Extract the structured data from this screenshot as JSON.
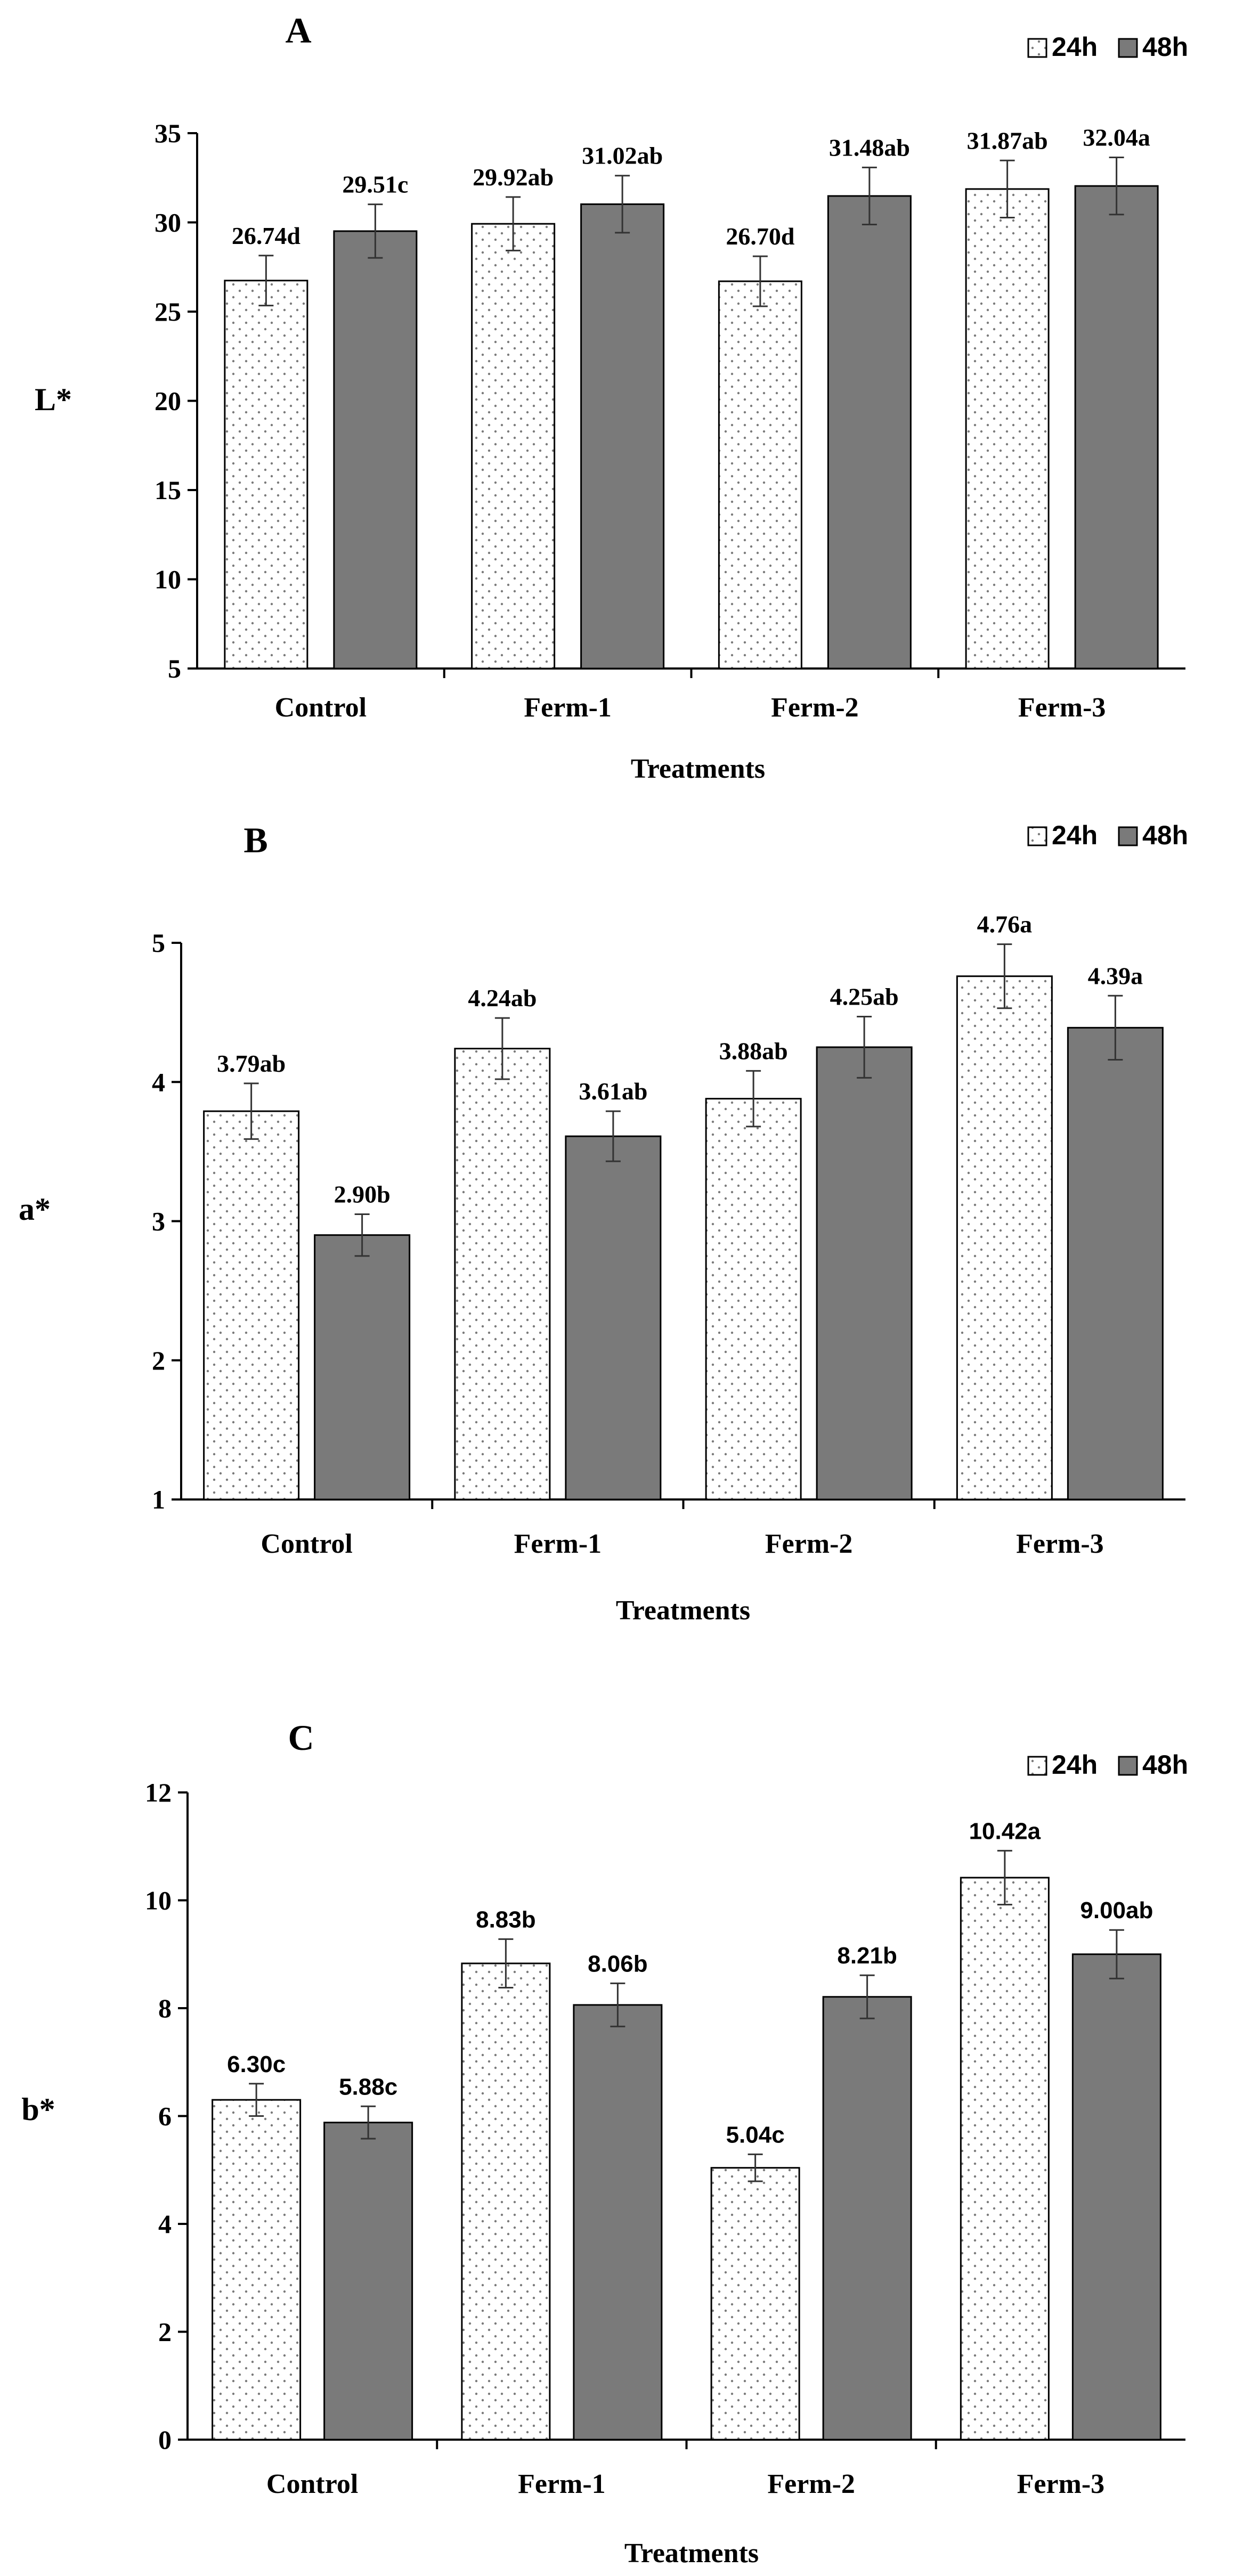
{
  "colors": {
    "bar_24h": "#ffffff",
    "bar_48h": "#7a7a7a",
    "dot": "#7a7a7a",
    "axis": "#000000"
  },
  "chart_data": [
    {
      "type": "bar",
      "panel": "A",
      "title": "A",
      "ylabel": "L*",
      "xlabel": "Treatments",
      "ylim": [
        5,
        35
      ],
      "yticks": [
        5,
        10,
        15,
        20,
        25,
        30,
        35
      ],
      "categories": [
        "Control",
        "Ferm-1",
        "Ferm-2",
        "Ferm-3"
      ],
      "legend": [
        "24h",
        "48h"
      ],
      "legend_position": "top-right",
      "series": [
        {
          "name": "24h",
          "values": [
            26.74,
            29.92,
            26.7,
            31.87
          ],
          "errors": [
            1.4,
            1.5,
            1.4,
            1.6
          ],
          "labels": [
            "26.74d",
            "29.92ab",
            "26.70d",
            "31.87ab"
          ]
        },
        {
          "name": "48h",
          "values": [
            29.51,
            31.02,
            31.48,
            32.04
          ],
          "errors": [
            1.5,
            1.6,
            1.6,
            1.6
          ],
          "labels": [
            "29.51c",
            "31.02ab",
            "31.48ab",
            "32.04a"
          ]
        }
      ]
    },
    {
      "type": "bar",
      "panel": "B",
      "title": "B",
      "ylabel": "a*",
      "xlabel": "Treatments",
      "ylim": [
        1,
        5
      ],
      "yticks": [
        1,
        2,
        3,
        4,
        5
      ],
      "categories": [
        "Control",
        "Ferm-1",
        "Ferm-2",
        "Ferm-3"
      ],
      "legend": [
        "24h",
        "48h"
      ],
      "legend_position": "top-right",
      "series": [
        {
          "name": "24h",
          "values": [
            3.79,
            4.24,
            3.88,
            4.76
          ],
          "errors": [
            0.2,
            0.22,
            0.2,
            0.23
          ],
          "labels": [
            "3.79ab",
            "4.24ab",
            "3.88ab",
            "4.76a"
          ]
        },
        {
          "name": "48h",
          "values": [
            2.9,
            3.61,
            4.25,
            4.39
          ],
          "errors": [
            0.15,
            0.18,
            0.22,
            0.23
          ],
          "labels": [
            "2.90b",
            "3.61ab",
            "4.25ab",
            "4.39a"
          ]
        }
      ]
    },
    {
      "type": "bar",
      "panel": "C",
      "title": "C",
      "ylabel": "b*",
      "xlabel": "Treatments",
      "ylim": [
        0,
        12
      ],
      "yticks": [
        0,
        2,
        4,
        6,
        8,
        10,
        12
      ],
      "categories": [
        "Control",
        "Ferm-1",
        "Ferm-2",
        "Ferm-3"
      ],
      "legend": [
        "24h",
        "48h"
      ],
      "legend_position": "top-right",
      "series": [
        {
          "name": "24h",
          "values": [
            6.3,
            8.83,
            5.04,
            10.42
          ],
          "errors": [
            0.3,
            0.45,
            0.25,
            0.5
          ],
          "labels": [
            "6.30c",
            "8.83b",
            "5.04c",
            "10.42a"
          ]
        },
        {
          "name": "48h",
          "values": [
            5.88,
            8.06,
            8.21,
            9.0
          ],
          "errors": [
            0.3,
            0.4,
            0.4,
            0.45
          ],
          "labels": [
            "5.88c",
            "8.06b",
            "8.21b",
            "9.00ab"
          ]
        }
      ]
    }
  ]
}
